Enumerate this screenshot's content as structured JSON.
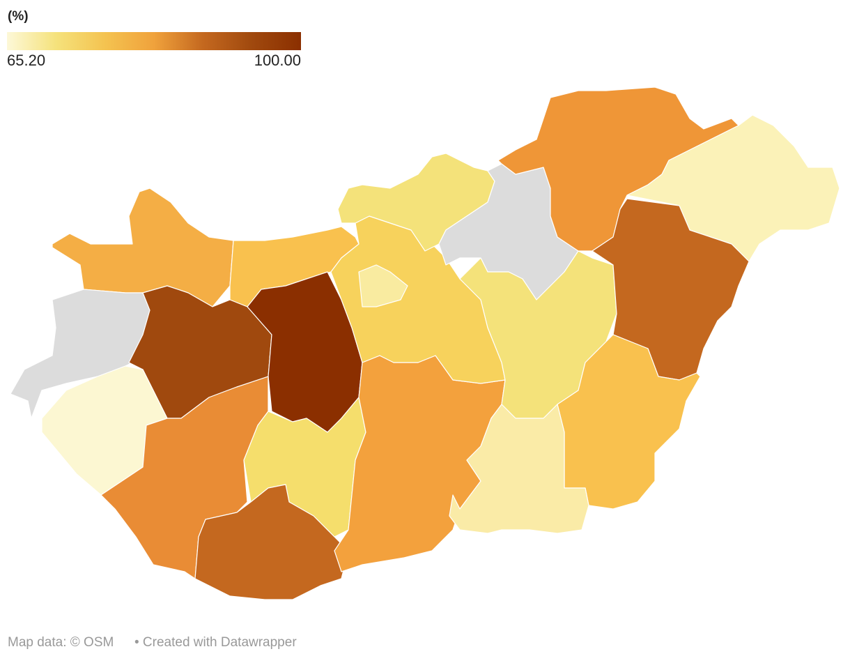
{
  "legend": {
    "title": "(%)",
    "colors": [
      "#fdf8d8",
      "#f5e27c",
      "#f4c350",
      "#f0a23c",
      "#c4681f",
      "#a0490e",
      "#8b2f00"
    ],
    "ticks": [
      {
        "value": 65.2,
        "label": "65.20"
      },
      {
        "value": 100,
        "label": "100.00"
      }
    ]
  },
  "regions": [
    {
      "color": "#f4ae45"
    },
    {
      "color": "#f9c14e"
    },
    {
      "color": "#dcdcdc"
    },
    {
      "color": "#a0490e"
    },
    {
      "color": "#8b2f00"
    },
    {
      "color": "#fcf7d2"
    },
    {
      "color": "#e98c35"
    },
    {
      "color": "#f5de6c"
    },
    {
      "color": "#c4681f"
    },
    {
      "color": "#f3a13d"
    },
    {
      "color": "#f7d25c"
    },
    {
      "color": "#f9eba0"
    },
    {
      "color": "#f4e27a"
    },
    {
      "color": "#dcdcdc"
    },
    {
      "color": "#f4e27a"
    },
    {
      "color": "#ef9637"
    },
    {
      "color": "#fbf2b8"
    },
    {
      "color": "#c4681f"
    },
    {
      "color": "#f9c14e"
    },
    {
      "color": "#faeba7"
    }
  ],
  "footer": {
    "source": "Map data: © OSM",
    "credit": "• Created with Datawrapper"
  }
}
